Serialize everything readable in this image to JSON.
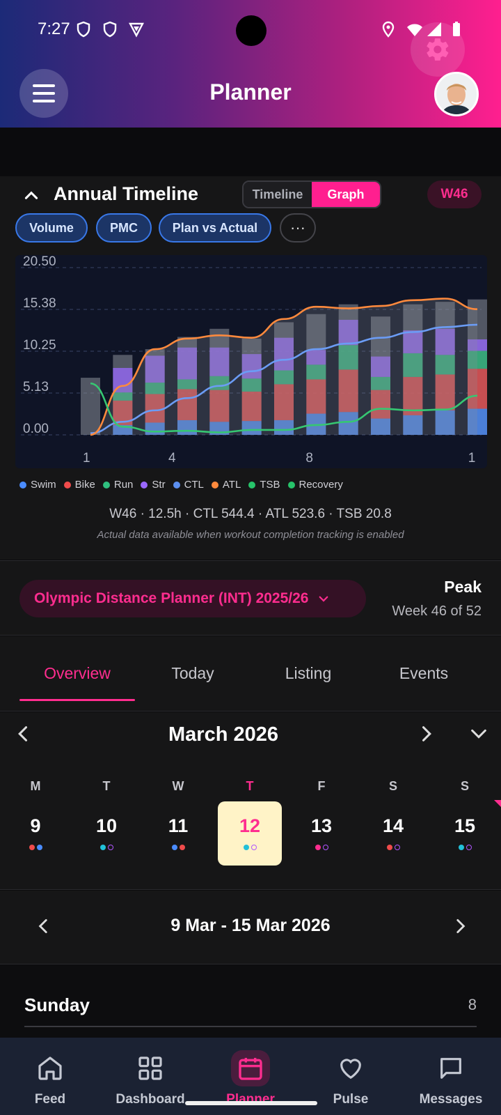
{
  "status": {
    "time": "7:27"
  },
  "header": {
    "title": "Planner"
  },
  "timeline": {
    "title": "Annual Timeline",
    "toggle": [
      "Timeline",
      "Graph"
    ],
    "active_toggle": "Graph",
    "week_badge": "W46",
    "chips": [
      "Volume",
      "PMC",
      "Plan vs Actual"
    ],
    "more": "···",
    "legend": [
      {
        "label": "Swim",
        "color": "#4a8cff"
      },
      {
        "label": "Bike",
        "color": "#ef4b4b"
      },
      {
        "label": "Run",
        "color": "#2fbf7f"
      },
      {
        "label": "Str",
        "color": "#9a68ff"
      },
      {
        "label": "CTL",
        "color": "#5b8ff0"
      },
      {
        "label": "ATL",
        "color": "#ff8a3d"
      },
      {
        "label": "TSB",
        "color": "#27c36a"
      },
      {
        "label": "Recovery",
        "color": "#27c36a"
      }
    ],
    "summary": "W46 · 12.5h · CTL 544.4 · ATL 523.6 · TSB 20.8",
    "note": "Actual data available when workout completion tracking is enabled"
  },
  "chart_data": {
    "type": "bar",
    "categories": [
      "",
      "1",
      "",
      "",
      "4",
      "",
      "",
      "",
      "8",
      "",
      "",
      "",
      "1"
    ],
    "x_tick_labels": [
      "1",
      "4",
      "8",
      "1"
    ],
    "y_ticks": [
      "20.50",
      "15.38",
      "10.25",
      "5.13",
      "0.00"
    ],
    "ylim": [
      0,
      20.5
    ],
    "stacked": true,
    "series": [
      {
        "name": "Swim",
        "values": [
          0,
          1.2,
          1.5,
          1.8,
          1.6,
          1.7,
          1.8,
          2.6,
          2.8,
          2.0,
          2.4,
          3.0,
          3.2
        ]
      },
      {
        "name": "Bike",
        "values": [
          0,
          3.0,
          3.5,
          3.8,
          3.9,
          3.6,
          4.4,
          4.2,
          5.2,
          3.5,
          4.7,
          4.4,
          4.9
        ]
      },
      {
        "name": "Run",
        "values": [
          0,
          1.0,
          1.4,
          1.2,
          1.7,
          1.6,
          1.7,
          1.8,
          3.0,
          1.6,
          2.9,
          2.4,
          2.2
        ]
      },
      {
        "name": "Str",
        "values": [
          0,
          3.0,
          3.3,
          3.9,
          3.5,
          3.0,
          4.0,
          1.8,
          3.1,
          2.5,
          2.8,
          3.2,
          1.4
        ]
      }
    ],
    "plan_totals": [
      7.0,
      9.8,
      10.5,
      12.0,
      13.0,
      11.8,
      13.8,
      14.8,
      16.0,
      14.5,
      16.0,
      16.3,
      16.6
    ],
    "lines": [
      {
        "name": "CTL",
        "values": [
          0.2,
          1.6,
          3.0,
          4.5,
          6.0,
          7.8,
          9.2,
          10.5,
          11.2,
          11.9,
          12.6,
          13.2,
          13.5
        ]
      },
      {
        "name": "ATL",
        "values": [
          0.0,
          6.0,
          10.5,
          11.8,
          12.2,
          11.9,
          14.2,
          15.7,
          15.5,
          15.8,
          16.5,
          16.7,
          15.4
        ]
      },
      {
        "name": "TSB",
        "values": [
          6.3,
          1.0,
          0.4,
          0.5,
          0.3,
          0.6,
          0.6,
          1.2,
          1.6,
          3.2,
          3.0,
          3.1,
          4.8
        ]
      }
    ]
  },
  "plan": {
    "name": "Olympic Distance Planner (INT) 2025/26",
    "phase": "Peak",
    "week": "Week 46 of 52"
  },
  "tabs": [
    "Overview",
    "Today",
    "Listing",
    "Events"
  ],
  "active_tab": "Overview",
  "calendar": {
    "month": "March 2026",
    "days": [
      {
        "dow": "M",
        "num": "9",
        "dots": [
          "#ef4b4b",
          "#4a8cff"
        ]
      },
      {
        "dow": "T",
        "num": "10",
        "dots": [
          "#22c0d8",
          "ring"
        ]
      },
      {
        "dow": "W",
        "num": "11",
        "dots": [
          "#4a8cff",
          "#ef4b4b"
        ]
      },
      {
        "dow": "T",
        "num": "12",
        "dots": [
          "#22c0d8",
          "ring"
        ],
        "today": true
      },
      {
        "dow": "F",
        "num": "13",
        "dots": [
          "#ff2d8f",
          "ring"
        ]
      },
      {
        "dow": "S",
        "num": "14",
        "dots": [
          "#ef4b4b",
          "ring"
        ]
      },
      {
        "dow": "S",
        "num": "15",
        "dots": [
          "#22c0d8",
          "ring"
        ]
      }
    ]
  },
  "week_range": "9 Mar - 15 Mar 2026",
  "day_section": {
    "name": "Sunday",
    "count": "8"
  },
  "bottom_nav": [
    "Feed",
    "Dashboard",
    "Planner",
    "Pulse",
    "Messages"
  ],
  "active_nav": "Planner"
}
